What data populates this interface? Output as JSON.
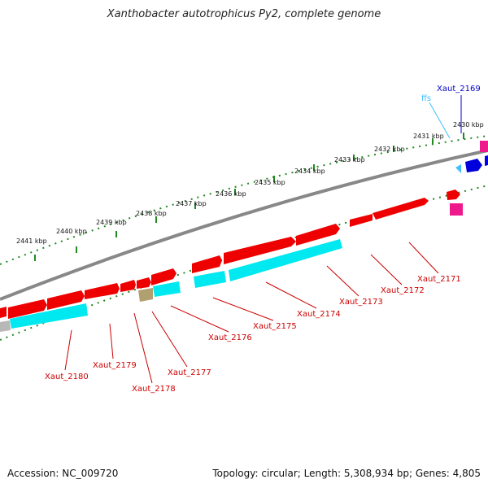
{
  "title": "Xanthobacter autotrophicus Py2, complete genome",
  "footer": {
    "accession": "Accession: NC_009720",
    "summary": "Topology: circular; Length: 5,308,934 bp; Genes: 4,805"
  },
  "colors": {
    "forward_gene": "#ee0000",
    "reverse_gene": "#00e8f0",
    "rna": "#ee1a8c",
    "highlight_gene": "#0000dd",
    "ffs_rna": "#40c0ff",
    "pseudo_gene": "#b0a070",
    "backbone": "#888888",
    "ticks": "#228822",
    "label_red": "#cc0000",
    "label_blue": "#0000cc",
    "label_cyan": "#40c0ff"
  },
  "ticks": [
    "2430 kbp",
    "2431 kbp",
    "2432 kbp",
    "2433 kbp",
    "2434 kbp",
    "2435 kbp",
    "2436 kbp",
    "2437 kbp",
    "2438 kbp",
    "2439 kbp",
    "2440 kbp",
    "2441 kbp"
  ],
  "gene_labels": [
    {
      "text": "Xaut_2169",
      "color": "label_blue"
    },
    {
      "text": "ffs",
      "color": "label_cyan"
    },
    {
      "text": "Xaut_2171",
      "color": "label_red"
    },
    {
      "text": "Xaut_2172",
      "color": "label_red"
    },
    {
      "text": "Xaut_2173",
      "color": "label_red"
    },
    {
      "text": "Xaut_2174",
      "color": "label_red"
    },
    {
      "text": "Xaut_2175",
      "color": "label_red"
    },
    {
      "text": "Xaut_2176",
      "color": "label_red"
    },
    {
      "text": "Xaut_2177",
      "color": "label_red"
    },
    {
      "text": "Xaut_2178",
      "color": "label_red"
    },
    {
      "text": "Xaut_2179",
      "color": "label_red"
    },
    {
      "text": "Xaut_2180",
      "color": "label_red"
    }
  ]
}
